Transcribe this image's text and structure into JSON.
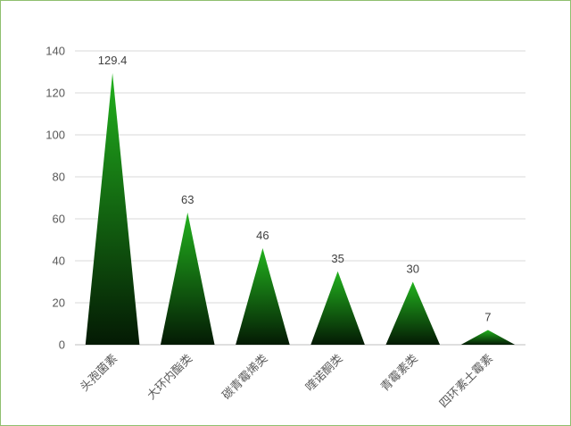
{
  "chart_data": {
    "type": "bar",
    "bar_shape": "triangle",
    "categories": [
      "头孢菌素",
      "大环内酯类",
      "碳青霉烯类",
      "喹诺酮类",
      "青霉素类",
      "四环素土霉素"
    ],
    "values": [
      129.4,
      63,
      46,
      35,
      30,
      7
    ],
    "data_labels": [
      "129.4",
      "63",
      "46",
      "35",
      "30",
      "7"
    ],
    "yticks": [
      "0",
      "20",
      "40",
      "60",
      "80",
      "100",
      "120",
      "140"
    ],
    "ylim": [
      0,
      140
    ],
    "grid": true,
    "legend": "none",
    "colors": {
      "fill_top": "#22b21e",
      "fill_bottom": "#041a04",
      "grid": "#d9d9d9",
      "axis": "#bfbfbf",
      "frame": "#8fbf6f"
    }
  }
}
